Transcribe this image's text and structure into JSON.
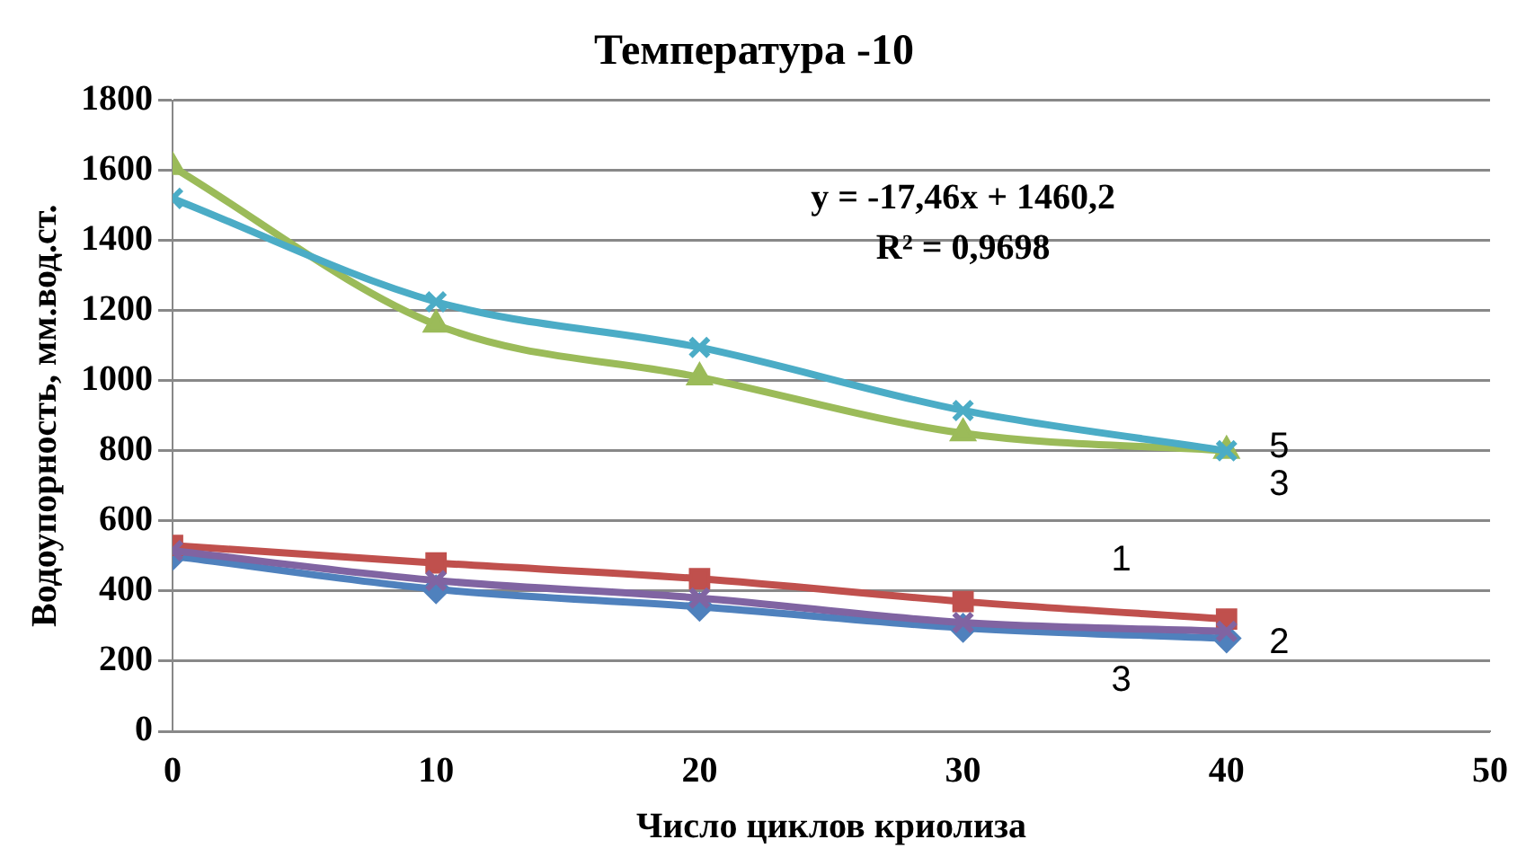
{
  "chart_data": {
    "type": "line",
    "title": "Температура -10",
    "xlabel": "Число циклов криолиза",
    "ylabel": "Водоупорность, мм.вод.ст.",
    "x": [
      0,
      10,
      20,
      30,
      40
    ],
    "series": [
      {
        "color": "#4f81bd",
        "marker": "diamond",
        "values": [
          500,
          405,
          355,
          295,
          265
        ]
      },
      {
        "color": "#c0504d",
        "marker": "square",
        "values": [
          530,
          480,
          435,
          370,
          320
        ]
      },
      {
        "color": "#8064a2",
        "marker": "cross",
        "values": [
          515,
          430,
          380,
          310,
          285
        ]
      },
      {
        "color": "#9bbb59",
        "marker": "triangle",
        "values": [
          1610,
          1160,
          1010,
          850,
          800
        ]
      },
      {
        "color": "#4bacc6",
        "marker": "cross",
        "values": [
          1520,
          1225,
          1095,
          915,
          800
        ]
      }
    ],
    "xlim": [
      0,
      50
    ],
    "xticks": [
      0,
      10,
      20,
      30,
      40,
      50
    ],
    "ylim": [
      0,
      1800
    ],
    "yticks": [
      0,
      200,
      400,
      600,
      800,
      1000,
      1200,
      1400,
      1600,
      1800
    ],
    "grid": "y",
    "legend": false,
    "annotations": [
      "y = -17,46x + 1460,2\nR² = 0,9698",
      "5",
      "3",
      "1",
      "2",
      "3"
    ]
  }
}
